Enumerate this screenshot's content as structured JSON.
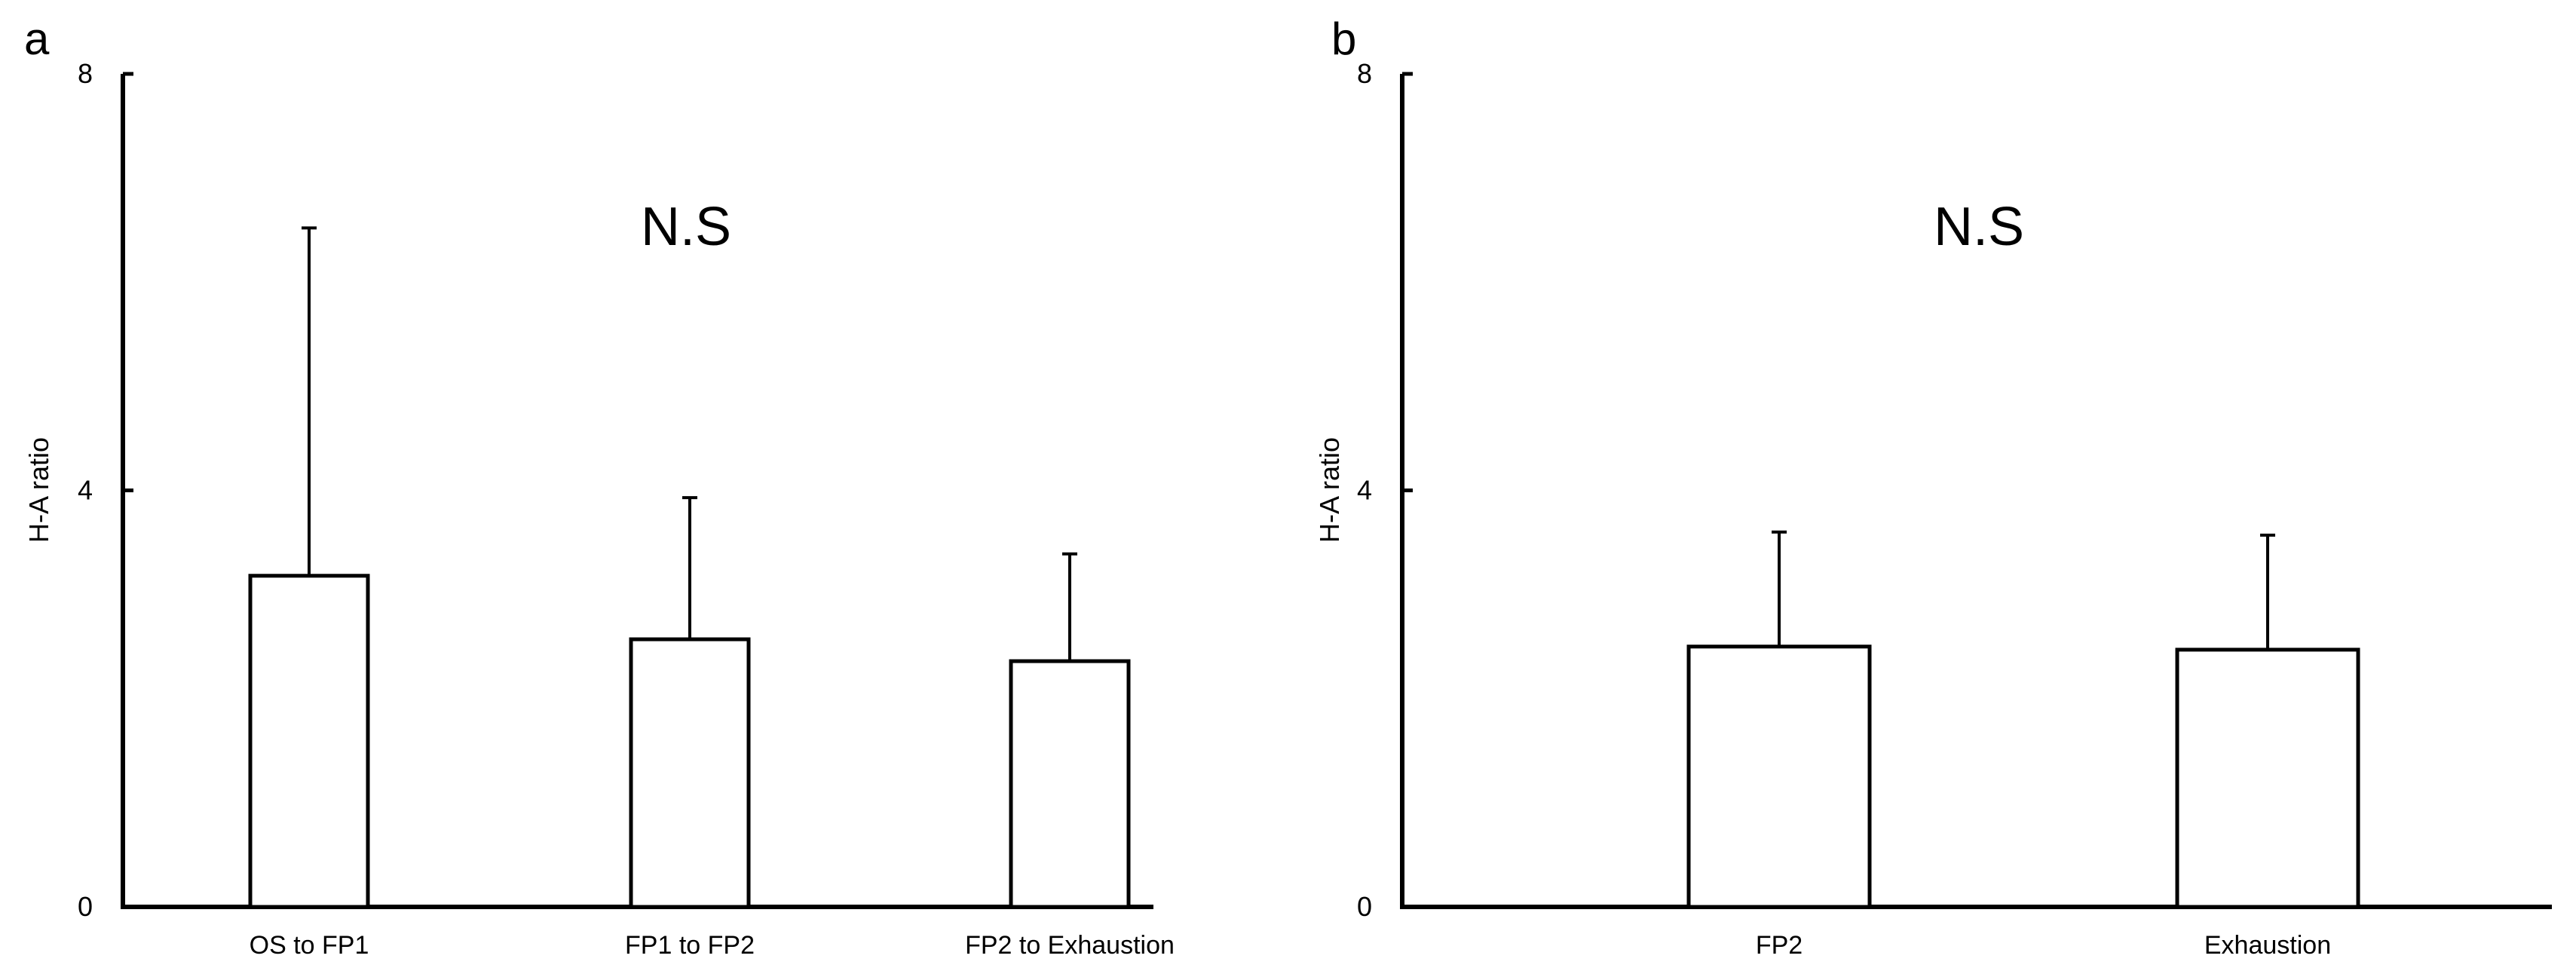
{
  "panels": [
    {
      "letter": "a",
      "annotation": "N.S",
      "ylabel": "H-A ratio",
      "yticks": [
        "0",
        "4",
        "8"
      ]
    },
    {
      "letter": "b",
      "annotation": "N.S",
      "ylabel": "H-A ratio",
      "yticks": [
        "0",
        "4",
        "8"
      ]
    }
  ],
  "chart_data": [
    {
      "type": "bar",
      "panel": "a",
      "title": "",
      "xlabel": "",
      "ylabel": "H-A ratio",
      "ylim": [
        0,
        8
      ],
      "yticks": [
        0,
        4,
        8
      ],
      "categories": [
        "OS to FP1",
        "FP1 to FP2",
        "FP2 to Exhaustion"
      ],
      "values": [
        3.18,
        2.57,
        2.36
      ],
      "error_plus": [
        3.34,
        1.36,
        1.03
      ],
      "annotations": [
        "N.S"
      ],
      "grid": false,
      "colors": {
        "bar_fill": "#ffffff",
        "bar_stroke": "#000000"
      }
    },
    {
      "type": "bar",
      "panel": "b",
      "title": "",
      "xlabel": "",
      "ylabel": "H-A ratio",
      "ylim": [
        0,
        8
      ],
      "yticks": [
        0,
        4,
        8
      ],
      "categories": [
        "FP2",
        "Exhaustion"
      ],
      "values": [
        2.5,
        2.47
      ],
      "error_plus": [
        1.1,
        1.1
      ],
      "annotations": [
        "N.S"
      ],
      "grid": false,
      "colors": {
        "bar_fill": "#ffffff",
        "bar_stroke": "#000000"
      }
    }
  ]
}
